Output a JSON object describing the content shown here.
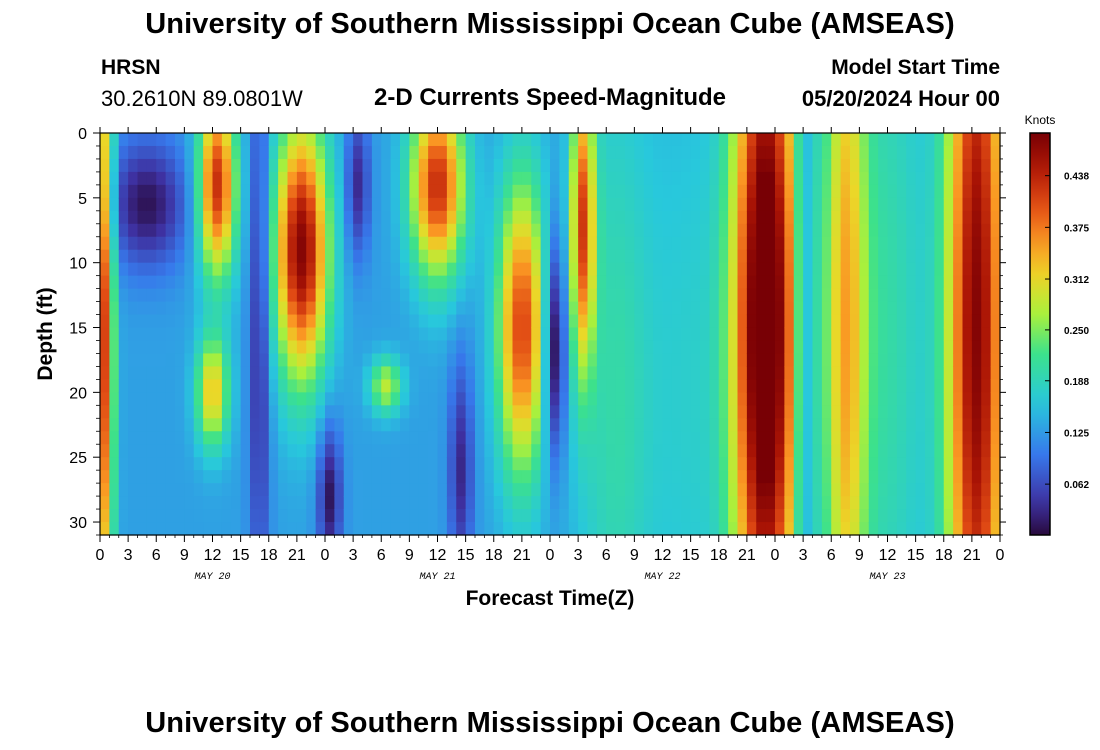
{
  "header": {
    "title": "University of Southern Mississippi Ocean Cube (AMSEAS)",
    "station": "HRSN",
    "coords": "30.2610N  89.0801W",
    "subtitle": "2-D Currents Speed-Magnitude",
    "model_start_label": "Model Start Time",
    "model_start_value": "05/20/2024 Hour 00"
  },
  "footer": {
    "title": "University of Southern Mississippi Ocean Cube (AMSEAS)"
  },
  "chart_data": {
    "type": "heatmap",
    "title": "2-D Currents Speed-Magnitude",
    "xlabel": "Forecast Time(Z)",
    "ylabel": "Depth (ft)",
    "xlim": [
      0,
      96
    ],
    "ylim": [
      31,
      0
    ],
    "x_tick_values": [
      0,
      3,
      6,
      9,
      12,
      15,
      18,
      21,
      24,
      27,
      30,
      33,
      36,
      39,
      42,
      45,
      48,
      51,
      54,
      57,
      60,
      63,
      66,
      69,
      72,
      75,
      78,
      81,
      84,
      87,
      90,
      93,
      96
    ],
    "x_tick_labels": [
      "0",
      "3",
      "6",
      "9",
      "12",
      "15",
      "18",
      "21",
      "0",
      "3",
      "6",
      "9",
      "12",
      "15",
      "18",
      "21",
      "0",
      "3",
      "6",
      "9",
      "12",
      "15",
      "18",
      "21",
      "0",
      "3",
      "6",
      "9",
      "12",
      "15",
      "18",
      "21",
      "0"
    ],
    "date_labels": [
      {
        "text": "MAY 20",
        "x": 12
      },
      {
        "text": "MAY 21",
        "x": 36
      },
      {
        "text": "MAY 22",
        "x": 60
      },
      {
        "text": "MAY 23",
        "x": 84
      }
    ],
    "y_ticks": [
      0,
      5,
      10,
      15,
      20,
      25,
      30
    ],
    "colorbar": {
      "label": "Knots",
      "min": 0,
      "max": 0.49,
      "ticks": [
        "0.062",
        "0.125",
        "0.188",
        "0.250",
        "0.312",
        "0.375",
        "0.438"
      ]
    },
    "features": [
      {
        "t": 0.5,
        "d": 15.5,
        "sx": 0.7,
        "sy": 18,
        "a": 0.28
      },
      {
        "t": 5,
        "d": 5.5,
        "sx": 3,
        "sy": 3.5,
        "a": -0.12
      },
      {
        "t": 12.5,
        "d": 4,
        "sx": 1.4,
        "sy": 5,
        "a": 0.3
      },
      {
        "t": 12,
        "d": 20,
        "sx": 1.2,
        "sy": 3,
        "a": 0.2
      },
      {
        "t": 17,
        "d": 15,
        "sx": 0.8,
        "sy": 16,
        "a": -0.1
      },
      {
        "t": 21.5,
        "d": 9,
        "sx": 2,
        "sy": 7,
        "a": 0.35
      },
      {
        "t": 24.5,
        "d": 28,
        "sx": 0.9,
        "sy": 4,
        "a": -0.12
      },
      {
        "t": 27.5,
        "d": 4,
        "sx": 0.9,
        "sy": 4,
        "a": -0.1
      },
      {
        "t": 30.5,
        "d": 19.5,
        "sx": 1.2,
        "sy": 1.5,
        "a": 0.15
      },
      {
        "t": 36,
        "d": 4,
        "sx": 2,
        "sy": 5,
        "a": 0.3
      },
      {
        "t": 38.5,
        "d": 26,
        "sx": 0.9,
        "sy": 6,
        "a": -0.1
      },
      {
        "t": 45,
        "d": 15,
        "sx": 1.8,
        "sy": 8,
        "a": 0.28
      },
      {
        "t": 48.5,
        "d": 16.5,
        "sx": 0.8,
        "sy": 6,
        "a": -0.16
      },
      {
        "t": 51.5,
        "d": 7,
        "sx": 0.9,
        "sy": 8,
        "a": 0.26
      },
      {
        "t": 55,
        "d": 20,
        "sx": 3,
        "sy": 20,
        "a": 0.07
      },
      {
        "t": 63,
        "d": 20,
        "sx": 3,
        "sy": 20,
        "a": 0.04
      },
      {
        "t": 71,
        "d": 15,
        "sx": 2.5,
        "sy": 22,
        "a": 0.42
      },
      {
        "t": 75,
        "d": 15,
        "sx": 0.5,
        "sy": 22,
        "a": -0.1
      },
      {
        "t": 79.5,
        "d": 15,
        "sx": 1.6,
        "sy": 25,
        "a": 0.2
      },
      {
        "t": 84,
        "d": 15,
        "sx": 3,
        "sy": 25,
        "a": 0.07
      },
      {
        "t": 93.5,
        "d": 15,
        "sx": 2.3,
        "sy": 28,
        "a": 0.35
      }
    ]
  }
}
